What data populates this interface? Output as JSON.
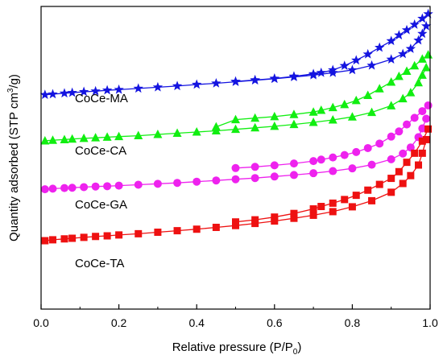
{
  "chart_data": {
    "type": "scatter",
    "xlabel": "Relative pressure (P/P",
    "xlabel_sub": "0",
    "xlabel_end": ")",
    "ylabel_main": "Quantity adsorbed (STP cm",
    "ylabel_sup": "3",
    "ylabel_end": "/g)",
    "xlim": [
      0.0,
      1.0
    ],
    "x_ticks": [
      "0.0",
      "0.2",
      "0.4",
      "0.6",
      "0.8",
      "1.0"
    ],
    "y_ticks_shown": false,
    "ylim": [
      0,
      100
    ],
    "grid": false,
    "series": [
      {
        "name": "CoCe-MA",
        "color": "#1414e0",
        "marker": "star",
        "adsorption": {
          "x": [
            0.01,
            0.03,
            0.06,
            0.08,
            0.11,
            0.14,
            0.17,
            0.2,
            0.25,
            0.3,
            0.35,
            0.4,
            0.45,
            0.5,
            0.55,
            0.6,
            0.65,
            0.7,
            0.75,
            0.8,
            0.85,
            0.9,
            0.93,
            0.95,
            0.97,
            0.98,
            0.99
          ],
          "y": [
            70.8,
            71.0,
            71.3,
            71.5,
            71.8,
            72.0,
            72.3,
            72.5,
            72.9,
            73.3,
            73.7,
            74.2,
            74.6,
            75.1,
            75.6,
            76.1,
            76.7,
            77.3,
            78.1,
            79.0,
            80.5,
            82.5,
            84.3,
            86.0,
            88.8,
            91.0,
            93.5
          ]
        },
        "desorption": {
          "x": [
            0.995,
            0.98,
            0.96,
            0.94,
            0.92,
            0.9,
            0.87,
            0.84,
            0.81,
            0.78,
            0.75,
            0.72,
            0.7,
            0.65,
            0.6,
            0.55,
            0.5
          ],
          "y": [
            97.5,
            96.0,
            94.0,
            92.2,
            90.5,
            88.6,
            86.4,
            84.2,
            82.2,
            80.4,
            79.0,
            78.1,
            77.7,
            76.9,
            76.2,
            75.7,
            75.2
          ]
        }
      },
      {
        "name": "CoCe-CA",
        "color": "#11ee11",
        "marker": "triangle",
        "adsorption": {
          "x": [
            0.01,
            0.03,
            0.06,
            0.08,
            0.11,
            0.14,
            0.17,
            0.2,
            0.25,
            0.3,
            0.35,
            0.4,
            0.45,
            0.5,
            0.55,
            0.6,
            0.65,
            0.7,
            0.75,
            0.8,
            0.85,
            0.9,
            0.93,
            0.95,
            0.97,
            0.98,
            0.99
          ],
          "y": [
            55.6,
            55.8,
            56.0,
            56.2,
            56.4,
            56.6,
            56.8,
            57.0,
            57.3,
            57.7,
            58.1,
            58.5,
            58.9,
            59.4,
            59.9,
            60.4,
            61.0,
            61.7,
            62.5,
            63.5,
            65.0,
            67.2,
            69.5,
            71.5,
            74.8,
            77.3,
            79.8
          ]
        },
        "desorption": {
          "x": [
            0.995,
            0.98,
            0.96,
            0.94,
            0.92,
            0.9,
            0.87,
            0.84,
            0.81,
            0.78,
            0.75,
            0.72,
            0.7,
            0.65,
            0.6,
            0.55,
            0.5,
            0.45
          ],
          "y": [
            84.0,
            82.6,
            80.4,
            78.6,
            76.9,
            75.0,
            72.8,
            70.6,
            68.9,
            67.6,
            66.6,
            65.7,
            65.1,
            64.3,
            63.6,
            63.1,
            62.6,
            60.2
          ]
        }
      },
      {
        "name": "CoCe-GA",
        "color": "#ee22ee",
        "marker": "circle",
        "adsorption": {
          "x": [
            0.01,
            0.03,
            0.06,
            0.08,
            0.11,
            0.14,
            0.17,
            0.2,
            0.25,
            0.3,
            0.35,
            0.4,
            0.45,
            0.5,
            0.55,
            0.6,
            0.65,
            0.7,
            0.75,
            0.8,
            0.85,
            0.9,
            0.93,
            0.95,
            0.97,
            0.98,
            0.99
          ],
          "y": [
            39.6,
            39.8,
            40.0,
            40.1,
            40.3,
            40.5,
            40.6,
            40.8,
            41.1,
            41.4,
            41.7,
            42.1,
            42.5,
            42.9,
            43.3,
            43.8,
            44.3,
            44.9,
            45.6,
            46.5,
            47.7,
            49.5,
            51.4,
            53.4,
            56.8,
            59.7,
            62.9
          ]
        },
        "desorption": {
          "x": [
            0.995,
            0.98,
            0.96,
            0.94,
            0.92,
            0.9,
            0.87,
            0.84,
            0.81,
            0.78,
            0.75,
            0.72,
            0.7,
            0.65,
            0.6,
            0.55,
            0.5
          ],
          "y": [
            67.3,
            65.4,
            63.2,
            61.0,
            58.7,
            57.0,
            54.7,
            53.2,
            51.9,
            50.9,
            50.1,
            49.4,
            48.9,
            48.1,
            47.5,
            47.0,
            46.6
          ]
        }
      },
      {
        "name": "CoCe-TA",
        "color": "#ee1111",
        "marker": "square",
        "adsorption": {
          "x": [
            0.01,
            0.03,
            0.06,
            0.08,
            0.11,
            0.14,
            0.17,
            0.2,
            0.25,
            0.3,
            0.35,
            0.4,
            0.45,
            0.5,
            0.55,
            0.6,
            0.65,
            0.7,
            0.75,
            0.8,
            0.85,
            0.9,
            0.93,
            0.95,
            0.97,
            0.98,
            0.99
          ],
          "y": [
            22.6,
            22.9,
            23.2,
            23.4,
            23.7,
            24.0,
            24.2,
            24.5,
            24.9,
            25.4,
            25.9,
            26.4,
            27.0,
            27.6,
            28.3,
            29.1,
            30.0,
            31.0,
            32.2,
            33.8,
            35.8,
            38.6,
            41.5,
            44.1,
            47.6,
            51.5,
            56.0
          ]
        },
        "desorption": {
          "x": [
            0.995,
            0.98,
            0.96,
            0.94,
            0.92,
            0.9,
            0.87,
            0.84,
            0.81,
            0.78,
            0.75,
            0.72,
            0.7,
            0.65,
            0.6,
            0.55,
            0.5
          ],
          "y": [
            59.5,
            55.5,
            51.5,
            48.5,
            45.4,
            43.2,
            41.2,
            39.3,
            37.6,
            36.2,
            35.0,
            33.9,
            33.1,
            31.6,
            30.4,
            29.5,
            28.8
          ]
        }
      }
    ]
  }
}
